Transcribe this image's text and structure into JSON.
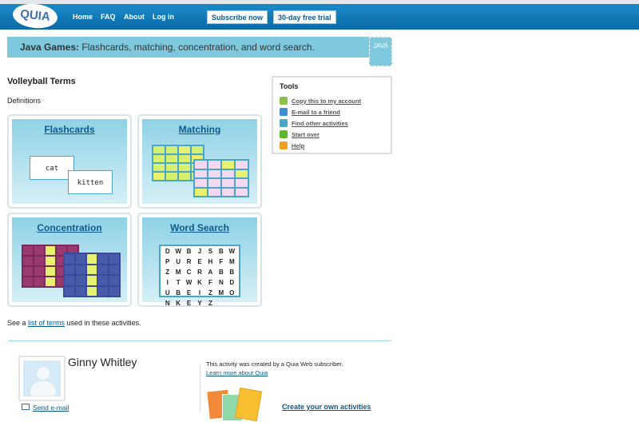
{
  "nav": {
    "logo": "QUIA",
    "links": [
      "Home",
      "FAQ",
      "About",
      "Log in"
    ],
    "subscribe": "Subscribe now",
    "trial": "30-day free trial"
  },
  "banner": {
    "bold": "Java Games:",
    "text": " Flashcards, matching, concentration, and word search.",
    "badge": "JAVA"
  },
  "title": "Volleyball Terms",
  "subtitle": "Definitions",
  "games": {
    "flashcards": "Flashcards",
    "matching": "Matching",
    "concentration": "Concentration",
    "wordsearch": "Word Search",
    "card1": "cat",
    "card2": "kitten",
    "letters": [
      "D",
      "W",
      "B",
      "J",
      "S",
      "B",
      "W",
      "P",
      "U",
      "R",
      "E",
      "H",
      "F",
      "M",
      "Z",
      "M",
      "C",
      "R",
      "A",
      "B",
      "B",
      "I",
      "T",
      "W",
      "K",
      "F",
      "N",
      "D",
      "U",
      "B",
      "E",
      "I",
      "Z",
      "M",
      "O",
      "N",
      "K",
      "E",
      "Y",
      "Z"
    ]
  },
  "tools": {
    "heading": "Tools",
    "items": [
      {
        "label": "Copy this to my account",
        "icon": "copy-icon",
        "color": "#8bc34a"
      },
      {
        "label": "E-mail to a friend",
        "icon": "email-friend-icon",
        "color": "#3a8fd0"
      },
      {
        "label": "Find other activities",
        "icon": "search-icon",
        "color": "#4aa6c8"
      },
      {
        "label": "Start over",
        "icon": "rewind-icon",
        "color": "#5cb82c"
      },
      {
        "label": "Help",
        "icon": "help-icon",
        "color": "#f0a020"
      }
    ]
  },
  "see": {
    "pre": "See a ",
    "link": "list of terms",
    "post": " used in these activities."
  },
  "author": {
    "name": "Ginny Whitley",
    "send": "Send e-mail"
  },
  "promo": {
    "text": "This activity was created by a Quia Web subscriber.",
    "learn": "Learn more about Quia",
    "create": "Create your own activities"
  }
}
